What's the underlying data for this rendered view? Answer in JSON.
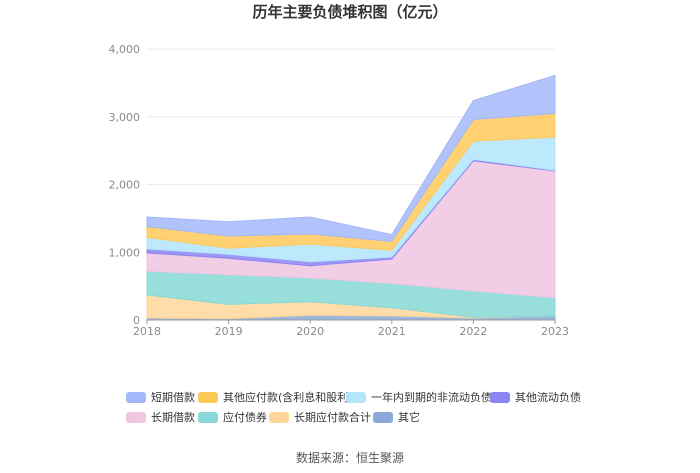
{
  "chart_data": {
    "type": "area",
    "stacked": true,
    "title": "历年主要负债堆积图（亿元）",
    "x": [
      "2018",
      "2019",
      "2020",
      "2021",
      "2022",
      "2023"
    ],
    "ylim": [
      0,
      4000
    ],
    "yticks": [
      "0",
      "1,000",
      "2,000",
      "3,000",
      "4,000"
    ],
    "grid": true,
    "legend_position": "bottom",
    "series": [
      {
        "name": "其它",
        "color": "#8aa9d8",
        "values": [
          30,
          20,
          70,
          60,
          30,
          60
        ]
      },
      {
        "name": "长期应付款合计",
        "color": "#ffd699",
        "values": [
          340,
          210,
          200,
          120,
          10,
          0
        ]
      },
      {
        "name": "应付债券",
        "color": "#86d9d6",
        "values": [
          350,
          440,
          350,
          360,
          390,
          270
        ]
      },
      {
        "name": "长期借款",
        "color": "#f0c6e2",
        "values": [
          270,
          240,
          180,
          360,
          1920,
          1870
        ]
      },
      {
        "name": "其他流动负债",
        "color": "#8b84f2",
        "values": [
          60,
          60,
          60,
          30,
          20,
          10
        ]
      },
      {
        "name": "一年内到期的非流动负债",
        "color": "#b3e5fb",
        "values": [
          170,
          90,
          260,
          100,
          270,
          490
        ]
      },
      {
        "name": "其他应付款(含利息和股利)",
        "color": "#ffc95a",
        "values": [
          160,
          180,
          150,
          130,
          320,
          350
        ]
      },
      {
        "name": "短期借款",
        "color": "#a3b8f9",
        "values": [
          140,
          210,
          250,
          100,
          280,
          560
        ]
      }
    ],
    "legend_order": [
      "短期借款",
      "其他应付款(含利息和股利)",
      "一年内到期的非流动负债",
      "其他流动负债",
      "长期借款",
      "应付债券",
      "长期应付款合计",
      "其它"
    ]
  },
  "source": "数据来源：恒生聚源"
}
